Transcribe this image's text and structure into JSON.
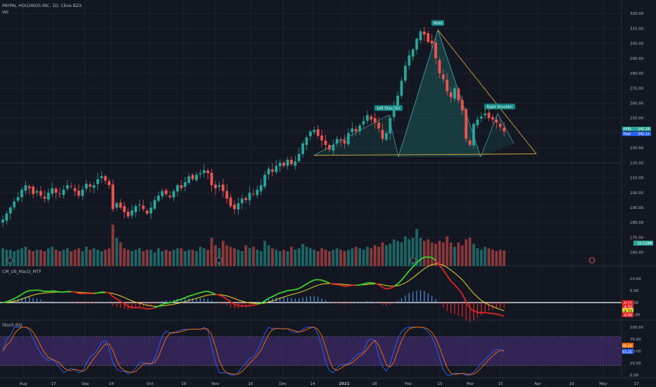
{
  "header": {
    "symbol_line": "PAYPAL HOLDINGS INC, 1D, Cboe BZX",
    "vol_label": "Vol"
  },
  "colors": {
    "background": "#131722",
    "grid": "#1e2230",
    "up": "#26a69a",
    "down": "#ef5350",
    "pattern_fill": "#1b4b4d",
    "pattern_edge": "#4aa6a8",
    "neckline": "#d6a63a",
    "tag": "#138a86",
    "macd_fast": "#3bd12e",
    "macd_slow": "#e8d62c",
    "macd_red": "#e02424",
    "stoch_band": "#3e2a66",
    "stoch_k": "#2962ff",
    "stoch_d": "#ff6d00"
  },
  "main_axis": {
    "ticks": [
      "320.00",
      "310.00",
      "300.00",
      "290.00",
      "280.00",
      "270.00",
      "260.00",
      "250.00",
      "240.00",
      "230.00",
      "220.00",
      "210.00",
      "200.00",
      "190.00",
      "180.00",
      "170.00",
      "160.00"
    ],
    "pypl_tag": "PYPL",
    "pypl_value": "241.28",
    "post_tag": "Post",
    "post_value": "241.12",
    "vol_value": "10.528M"
  },
  "macd_panel": {
    "label": "CM_Ult_MacD_MTF",
    "ticks": [
      "10.00",
      "5.00",
      "0.00",
      "-5.00"
    ],
    "tags": [
      "-0.21",
      "-4.70",
      "-4.70",
      "-4.90"
    ]
  },
  "stoch_panel": {
    "label": "Stoch RSI",
    "ticks": [
      "100.00",
      "75.00",
      "50.00",
      "25.00",
      "0.00"
    ],
    "tags": [
      "58.45",
      "53.21"
    ]
  },
  "x_axis": {
    "labels": [
      "Aug",
      "17",
      "Sep",
      "14",
      "Oct",
      "19",
      "Nov",
      "16",
      "Dec",
      "14",
      "2021",
      "18",
      "Feb",
      "15",
      "Mar",
      "15",
      "Apr",
      "19",
      "May",
      "17"
    ]
  },
  "chart_data": {
    "type": "candlestick",
    "title": "PAYPAL HOLDINGS INC, 1D, Cboe BZX",
    "ylim": [
      157,
      322
    ],
    "annotations": [
      "Head",
      "Left Shoulder",
      "Right Shoulder"
    ],
    "pattern": {
      "type": "head and shoulders",
      "left_shoulder": {
        "date": "2021-01-20",
        "price": 252
      },
      "head": {
        "date": "2021-02-16",
        "price": 309
      },
      "right_shoulder": {
        "date": "2021-03-12",
        "price": 253
      },
      "neckline": [
        {
          "date": "2020-12-14",
          "price": 225
        },
        {
          "date": "2021-03-24",
          "price": 226
        }
      ]
    },
    "series": [
      {
        "name": "PYPL",
        "closes": [
          182,
          186,
          190,
          194,
          197,
          202,
          205,
          203,
          199,
          201,
          198,
          196,
          200,
          203,
          200,
          199,
          202,
          205,
          204,
          201,
          198,
          202,
          206,
          204,
          205,
          209,
          211,
          208,
          205,
          189,
          193,
          190,
          187,
          184,
          188,
          191,
          192,
          189,
          186,
          190,
          195,
          198,
          201,
          199,
          197,
          201,
          205,
          203,
          207,
          211,
          209,
          212,
          213,
          215,
          213,
          205,
          203,
          205,
          201,
          196,
          191,
          189,
          193,
          196,
          195,
          200,
          199,
          202,
          205,
          212,
          216,
          214,
          218,
          220,
          218,
          222,
          219,
          221,
          226,
          233,
          237,
          241,
          242,
          238,
          235,
          232,
          229,
          232,
          236,
          235,
          233,
          240,
          243,
          241,
          245,
          248,
          252,
          249,
          247,
          243,
          236,
          240,
          250,
          258,
          265,
          275,
          285,
          292,
          296,
          303,
          308,
          306,
          301,
          300,
          290,
          280,
          276,
          268,
          264,
          270,
          262,
          255,
          236,
          232,
          246,
          249,
          251,
          253,
          250,
          249,
          247,
          244,
          241
        ],
        "volumes_m": [
          12,
          11,
          11,
          10,
          11,
          12,
          13,
          11,
          10,
          11,
          11,
          10,
          12,
          13,
          11,
          10,
          11,
          12,
          10,
          11,
          12,
          10,
          13,
          11,
          12,
          11,
          10,
          11,
          12,
          28,
          19,
          16,
          12,
          11,
          10,
          11,
          12,
          10,
          11,
          11,
          9,
          12,
          10,
          11,
          10,
          11,
          12,
          12,
          10,
          11,
          11,
          10,
          13,
          12,
          11,
          19,
          14,
          12,
          17,
          14,
          13,
          12,
          11,
          10,
          14,
          12,
          13,
          11,
          10,
          17,
          14,
          12,
          11,
          10,
          11,
          10,
          13,
          11,
          12,
          15,
          13,
          12,
          11,
          10,
          12,
          11,
          10,
          11,
          12,
          11,
          10,
          11,
          12,
          13,
          12,
          11,
          13,
          12,
          14,
          13,
          16,
          14,
          15,
          18,
          17,
          16,
          20,
          18,
          19,
          25,
          19,
          17,
          18,
          16,
          15,
          17,
          16,
          20,
          16,
          13,
          16,
          14,
          18,
          19,
          15,
          12,
          11,
          13,
          12,
          11,
          10,
          11,
          10.5
        ]
      }
    ]
  }
}
